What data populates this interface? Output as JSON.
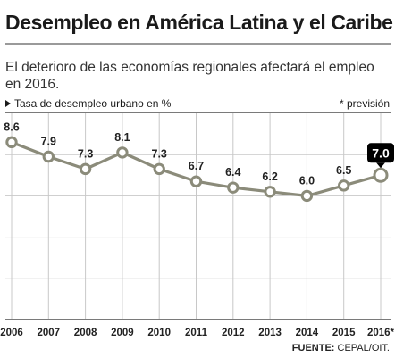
{
  "title": "Desempleo en América Latina y el Caribe",
  "subtitle": "El deterioro de las economías regionales afectará el empleo en 2016.",
  "y_axis_label": "Tasa de desempleo urbano en %",
  "note": "* previsión",
  "source": {
    "label": "FUENTE:",
    "text": " CEPAL/OIT."
  },
  "colors": {
    "line": "#8b8b7a",
    "marker_fill": "#ffffff",
    "highlight_bg": "#000000",
    "highlight_text": "#ffffff",
    "grid": "#c8c8c8",
    "text": "#222222"
  },
  "chart_data": {
    "type": "line",
    "categories": [
      "2006",
      "2007",
      "2008",
      "2009",
      "2010",
      "2011",
      "2012",
      "2013",
      "2014",
      "2015",
      "2016*"
    ],
    "series": [
      {
        "values": [
          8.6,
          7.9,
          7.3,
          8.1,
          7.3,
          6.7,
          6.4,
          6.2,
          6.0,
          6.5,
          7.0
        ]
      }
    ],
    "data_labels": [
      "8.6",
      "7.9",
      "7.3",
      "8.1",
      "7.3",
      "6.7",
      "6.4",
      "6.2",
      "6.0",
      "6.5",
      "7.0"
    ],
    "highlighted_category": "2016*",
    "xlabel": "",
    "ylabel": "Tasa de desempleo urbano en %",
    "ylim": [
      0,
      10
    ],
    "grid": true,
    "projection_marker": "*"
  }
}
